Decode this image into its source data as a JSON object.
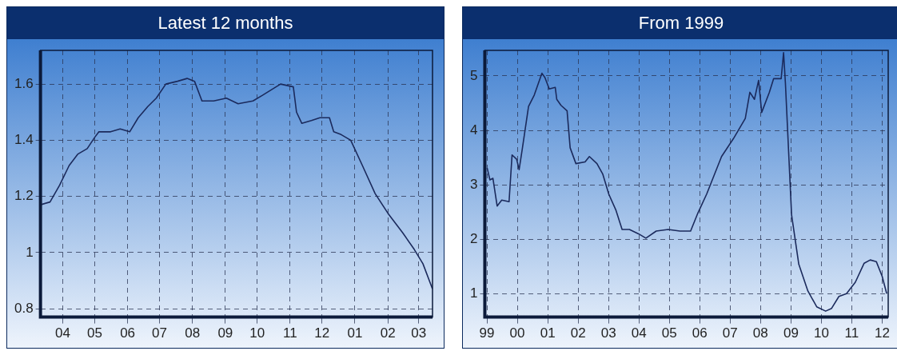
{
  "chart_data": [
    {
      "type": "line",
      "title": "Latest 12 months",
      "x": [
        "2011-03-11",
        "2011-03-20",
        "2011-03-29",
        "2011-04-07",
        "2011-04-15",
        "2011-04-24",
        "2011-05-01",
        "2011-05-05",
        "2011-05-16",
        "2011-05-25",
        "2011-06-03",
        "2011-06-11",
        "2011-06-20",
        "2011-06-28",
        "2011-07-07",
        "2011-07-18",
        "2011-07-27",
        "2011-08-03",
        "2011-08-10",
        "2011-08-21",
        "2011-09-02",
        "2011-09-13",
        "2011-09-27",
        "2011-10-06",
        "2011-10-23",
        "2011-11-04",
        "2011-11-07",
        "2011-11-12",
        "2011-11-21",
        "2011-11-29",
        "2011-12-08",
        "2011-12-12",
        "2011-12-19",
        "2011-12-28",
        "2012-01-08",
        "2012-01-20",
        "2012-02-01",
        "2012-02-15",
        "2012-02-26",
        "2012-03-05",
        "2012-03-14"
      ],
      "series": [
        {
          "color": "#1b2a5c",
          "values": [
            1.17,
            1.18,
            1.24,
            1.31,
            1.35,
            1.37,
            1.41,
            1.43,
            1.43,
            1.44,
            1.43,
            1.48,
            1.52,
            1.55,
            1.6,
            1.61,
            1.62,
            1.61,
            1.54,
            1.54,
            1.55,
            1.53,
            1.54,
            1.56,
            1.6,
            1.59,
            1.5,
            1.46,
            1.47,
            1.48,
            1.48,
            1.43,
            1.42,
            1.4,
            1.31,
            1.21,
            1.14,
            1.07,
            1.01,
            0.96,
            0.87
          ]
        }
      ],
      "xlim": [
        "2011-03-11",
        "2012-03-14"
      ],
      "xticks": [
        {
          "value": "2011-04-01",
          "label": "04"
        },
        {
          "value": "2011-05-01",
          "label": "05"
        },
        {
          "value": "2011-06-01",
          "label": "06"
        },
        {
          "value": "2011-07-01",
          "label": "07"
        },
        {
          "value": "2011-08-01",
          "label": "08"
        },
        {
          "value": "2011-09-01",
          "label": "09"
        },
        {
          "value": "2011-10-01",
          "label": "10"
        },
        {
          "value": "2011-11-01",
          "label": "11"
        },
        {
          "value": "2011-12-01",
          "label": "12"
        },
        {
          "value": "2012-01-01",
          "label": "01"
        },
        {
          "value": "2012-02-01",
          "label": "02"
        },
        {
          "value": "2012-03-01",
          "label": "03"
        }
      ],
      "ylim": [
        0.77,
        1.72
      ],
      "yticks": [
        0.8,
        1,
        1.2,
        1.4,
        1.6
      ],
      "grid": true,
      "legend": false,
      "marker": "none",
      "line_style": "solid"
    },
    {
      "type": "line",
      "title": "From 1999",
      "x": [
        "1999-01-04",
        "1999-02-06",
        "1999-03-14",
        "1999-05-04",
        "1999-06-28",
        "1999-09-24",
        "1999-10-30",
        "1999-12-24",
        "2000-01-23",
        "2000-03-03",
        "2000-05-15",
        "2000-07-23",
        "2000-10-23",
        "2000-11-28",
        "2001-01-19",
        "2001-04-01",
        "2001-04-19",
        "2001-06-09",
        "2001-08-21",
        "2001-09-27",
        "2001-12-05",
        "2002-03-25",
        "2002-05-16",
        "2002-08-15",
        "2002-10-23",
        "2003-01-04",
        "2003-04-01",
        "2003-06-13",
        "2003-09-09",
        "2003-12-27",
        "2004-03-25",
        "2004-07-27",
        "2004-12-17",
        "2005-05-08",
        "2005-09-13",
        "2005-12-09",
        "2006-03-25",
        "2006-09-20",
        "2007-02-10",
        "2007-07-02",
        "2007-08-26",
        "2007-10-20",
        "2007-12-09",
        "2008-01-15",
        "2008-04-16",
        "2008-06-06",
        "2008-09-05",
        "2008-10-04",
        "2008-10-26",
        "2009-01-08",
        "2009-04-05",
        "2009-07-23",
        "2009-11-06",
        "2010-02-21",
        "2010-05-04",
        "2010-07-31",
        "2010-10-30",
        "2011-02-13",
        "2011-05-30",
        "2011-08-11",
        "2011-10-23",
        "2012-01-01",
        "2012-02-25"
      ],
      "series": [
        {
          "color": "#1b2a5c",
          "values": [
            3.31,
            3.09,
            3.12,
            2.61,
            2.72,
            2.69,
            3.55,
            3.47,
            3.28,
            3.68,
            4.44,
            4.65,
            5.05,
            4.97,
            4.76,
            4.79,
            4.57,
            4.46,
            4.36,
            3.68,
            3.39,
            3.42,
            3.52,
            3.39,
            3.2,
            2.83,
            2.53,
            2.18,
            2.18,
            2.1,
            2.02,
            2.15,
            2.18,
            2.15,
            2.15,
            2.48,
            2.83,
            3.52,
            3.85,
            4.22,
            4.7,
            4.57,
            4.92,
            4.33,
            4.7,
            4.95,
            4.95,
            5.43,
            4.87,
            2.45,
            1.54,
            1.05,
            0.76,
            0.68,
            0.73,
            0.95,
            1,
            1.21,
            1.56,
            1.62,
            1.59,
            1.32,
            1
          ]
        }
      ],
      "xlim": [
        "1998-12-07",
        "2012-03-14"
      ],
      "xticks": [
        {
          "value": "1999-01-01",
          "label": "99"
        },
        {
          "value": "2000-01-01",
          "label": "00"
        },
        {
          "value": "2001-01-01",
          "label": "01"
        },
        {
          "value": "2002-01-01",
          "label": "02"
        },
        {
          "value": "2003-01-01",
          "label": "03"
        },
        {
          "value": "2004-01-01",
          "label": "04"
        },
        {
          "value": "2005-01-01",
          "label": "05"
        },
        {
          "value": "2006-01-01",
          "label": "06"
        },
        {
          "value": "2007-01-01",
          "label": "07"
        },
        {
          "value": "2008-01-01",
          "label": "08"
        },
        {
          "value": "2009-01-01",
          "label": "09"
        },
        {
          "value": "2010-01-01",
          "label": "10"
        },
        {
          "value": "2011-01-01",
          "label": "11"
        },
        {
          "value": "2012-01-01",
          "label": "12"
        }
      ],
      "ylim": [
        0.57,
        5.47
      ],
      "yticks": [
        1,
        2,
        3,
        4,
        5
      ],
      "grid": true,
      "legend": false,
      "marker": "none",
      "line_style": "solid"
    }
  ]
}
